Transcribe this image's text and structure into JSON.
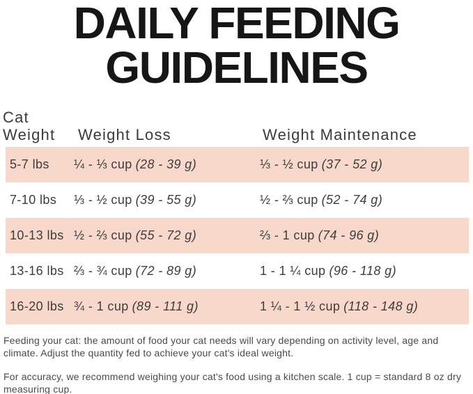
{
  "title": {
    "line1": "DAILY FEEDING",
    "line2": "GUIDELINES"
  },
  "table": {
    "row_highlight_color": "#f9d8cc",
    "headers": {
      "weight_line1": "Cat",
      "weight_line2": "Weight",
      "loss": "Weight Loss",
      "maintenance": "Weight Maintenance"
    },
    "rows": [
      {
        "weight": "5-7 lbs",
        "loss": "¼ - ⅓ cup",
        "loss_g": "(28 - 39 g)",
        "maint": "⅓ - ½ cup",
        "maint_g": "(37 - 52 g)"
      },
      {
        "weight": "7-10 lbs",
        "loss": "⅓ - ½ cup",
        "loss_g": "(39 - 55 g)",
        "maint": "½ - ⅔ cup",
        "maint_g": "(52 - 74 g)"
      },
      {
        "weight": "10-13 lbs",
        "loss": "½ - ⅔ cup",
        "loss_g": "(55 - 72 g)",
        "maint": "⅔ - 1 cup",
        "maint_g": "(74 - 96 g)"
      },
      {
        "weight": "13-16 lbs",
        "loss": "⅔ - ¾ cup",
        "loss_g": "(72 - 89 g)",
        "maint": "1 - 1 ¼ cup",
        "maint_g": "(96 - 118 g)"
      },
      {
        "weight": "16-20 lbs",
        "loss": "¾ - 1 cup",
        "loss_g": "(89 - 111 g)",
        "maint": "1 ¼ - 1 ½ cup",
        "maint_g": "(118 - 148 g)"
      }
    ]
  },
  "footnotes": {
    "para1": "Feeding your cat: the amount of food your cat needs will vary depending on activity level, age and climate. Adjust the quantity fed to achieve your cat's ideal weight.",
    "para2": "For accuracy, we recommend weighing your cat's food using a kitchen scale. 1 cup = standard 8 oz dry measuring cup."
  }
}
